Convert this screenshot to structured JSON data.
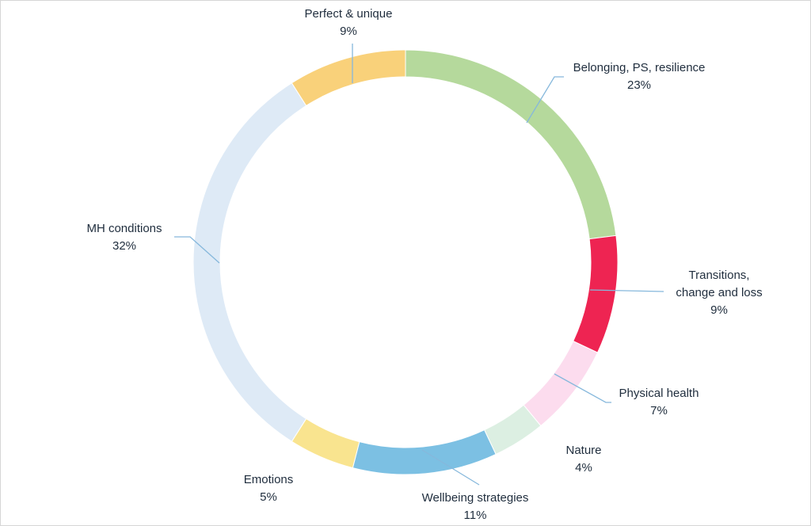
{
  "chart_data": {
    "type": "pie",
    "variant": "donut",
    "title": "",
    "legend": "none",
    "slices": [
      {
        "label": "Belonging, PS, resilience",
        "label_lines": [
          "Belonging, PS, resilience"
        ],
        "pct_label": "23%",
        "value": 23,
        "color": "#b5d99c"
      },
      {
        "label": "Transitions, change and loss",
        "label_lines": [
          "Transitions,",
          "change and loss"
        ],
        "pct_label": "9%",
        "value": 9,
        "color": "#ee2452"
      },
      {
        "label": "Physical health",
        "label_lines": [
          "Physical health"
        ],
        "pct_label": "7%",
        "value": 7,
        "color": "#fcdcee"
      },
      {
        "label": "Nature",
        "label_lines": [
          "Nature"
        ],
        "pct_label": "4%",
        "value": 4,
        "color": "#dcefe2"
      },
      {
        "label": "Wellbeing strategies",
        "label_lines": [
          "Wellbeing strategies"
        ],
        "pct_label": "11%",
        "value": 11,
        "color": "#7cc0e3"
      },
      {
        "label": "Emotions",
        "label_lines": [
          "Emotions"
        ],
        "pct_label": "5%",
        "value": 5,
        "color": "#f9e48f"
      },
      {
        "label": "MH conditions",
        "label_lines": [
          "MH conditions"
        ],
        "pct_label": "32%",
        "value": 32,
        "color": "#deeaf6"
      },
      {
        "label": "Perfect & unique",
        "label_lines": [
          "Perfect & unique"
        ],
        "pct_label": "9%",
        "value": 9,
        "color": "#f9d17a"
      }
    ]
  }
}
